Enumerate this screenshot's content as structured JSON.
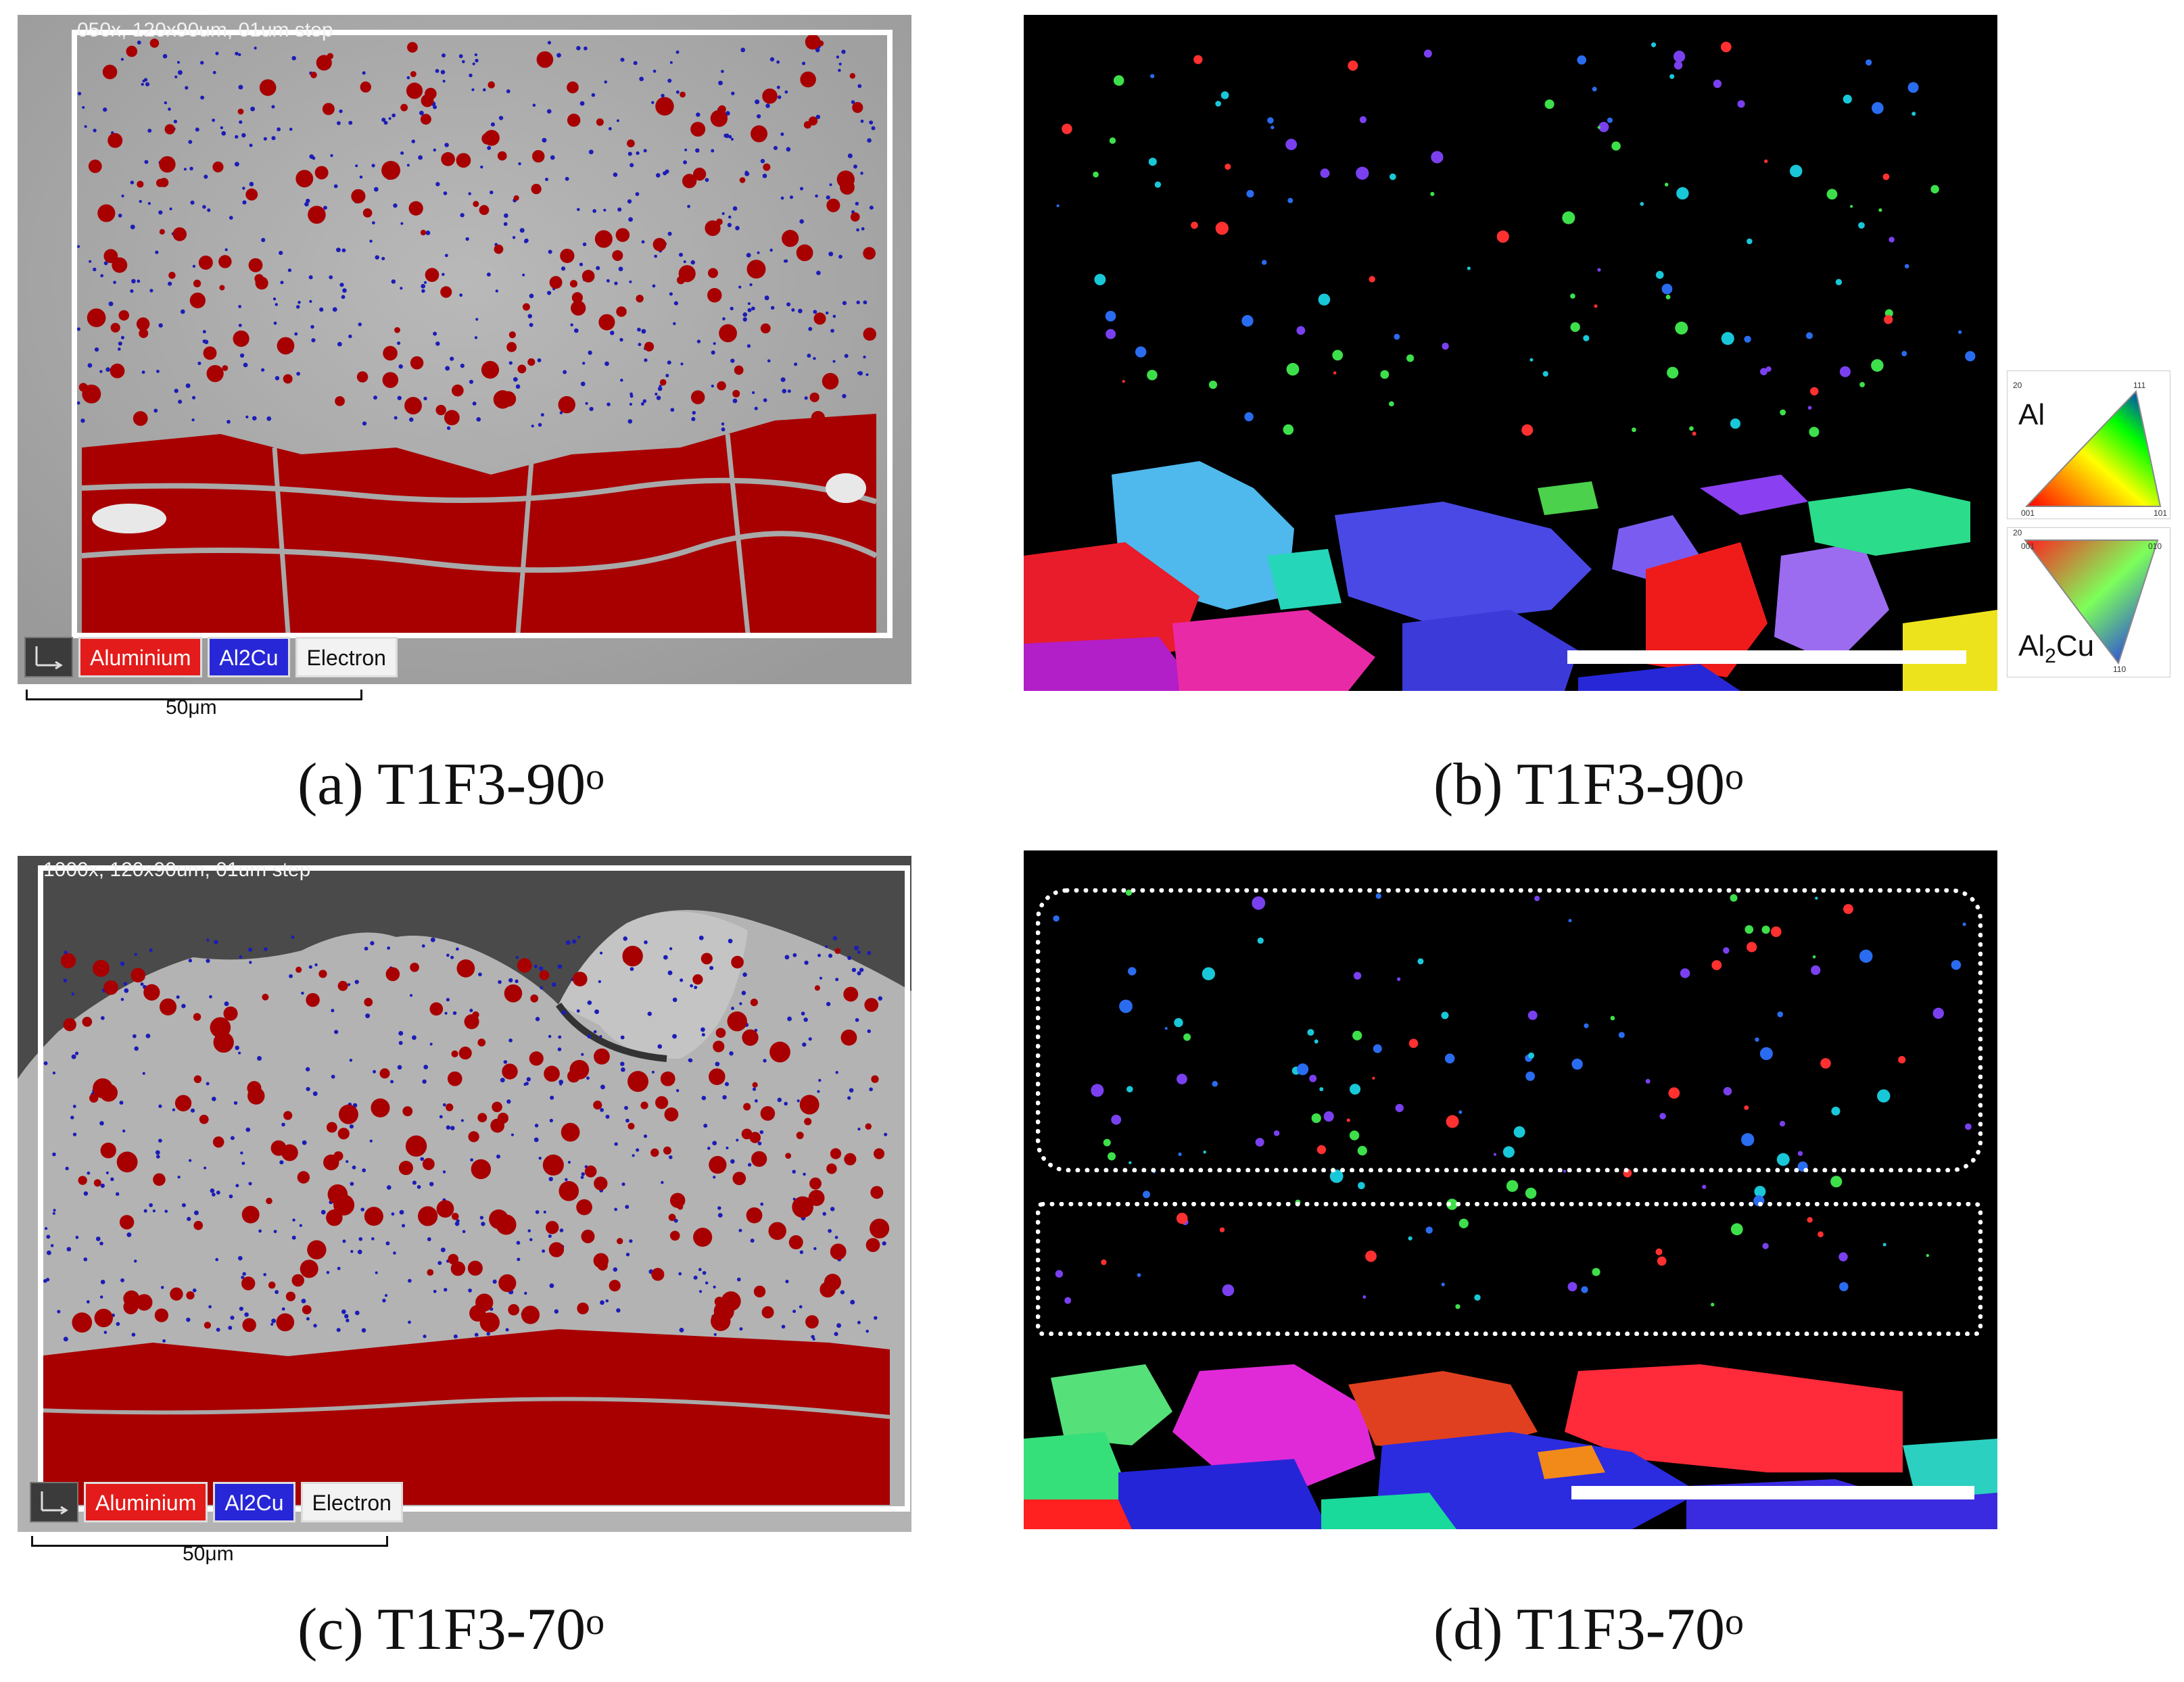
{
  "panel_a": {
    "top_text": "050x, 120x90um, 01um step",
    "legend": [
      "Aluminium",
      "Al2Cu",
      "Electron"
    ],
    "scale_label": "50μm",
    "caption": "(a) T1F3-90",
    "caption_sup": "o"
  },
  "panel_b": {
    "caption": "(b) T1F3-90",
    "caption_sup": "o",
    "key_al_label": "Al",
    "key_al2cu_label": "Al",
    "key_al2cu_sub": "2",
    "key_al2cu_tail": "Cu",
    "key_al_ticks": [
      "20",
      "111",
      "001",
      "101"
    ],
    "key_al2cu_ticks": [
      "20",
      "001",
      "010",
      "110"
    ]
  },
  "panel_c": {
    "top_text": "1000x, 120x90um, 01um step",
    "legend": [
      "Aluminium",
      "Al2Cu",
      "Electron"
    ],
    "scale_label": "50μm",
    "caption": "(c) T1F3-70",
    "caption_sup": "o"
  },
  "panel_d": {
    "caption": "(d) T1F3-70",
    "caption_sup": "o"
  },
  "colors": {
    "aluminium": "#b00000",
    "al2cu": "#1f1fd6",
    "sem_grey": "#a9a9a9"
  }
}
